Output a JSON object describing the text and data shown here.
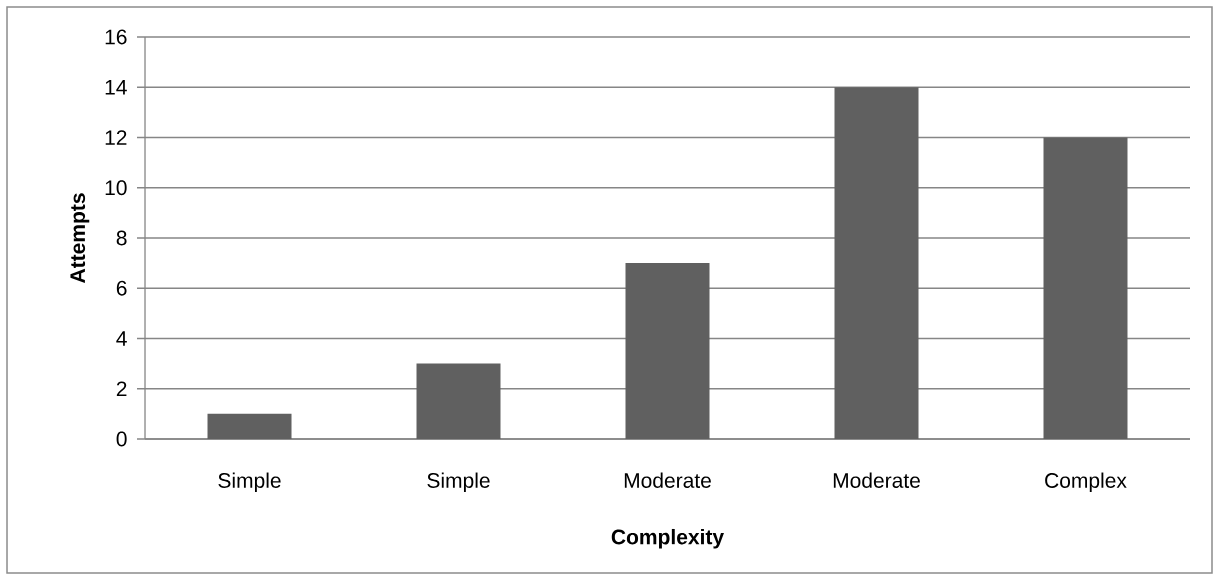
{
  "chart_data": {
    "type": "bar",
    "xlabel": "Complexity",
    "ylabel": "Attempts",
    "categories": [
      "Simple",
      "Simple",
      "Moderate",
      "Moderate",
      "Complex"
    ],
    "values": [
      1,
      3,
      7,
      14,
      12
    ],
    "color": "#606060",
    "ylim": [
      0,
      16
    ],
    "yticks": [
      0,
      2,
      4,
      6,
      8,
      10,
      12,
      14,
      16
    ],
    "grid": "y"
  }
}
